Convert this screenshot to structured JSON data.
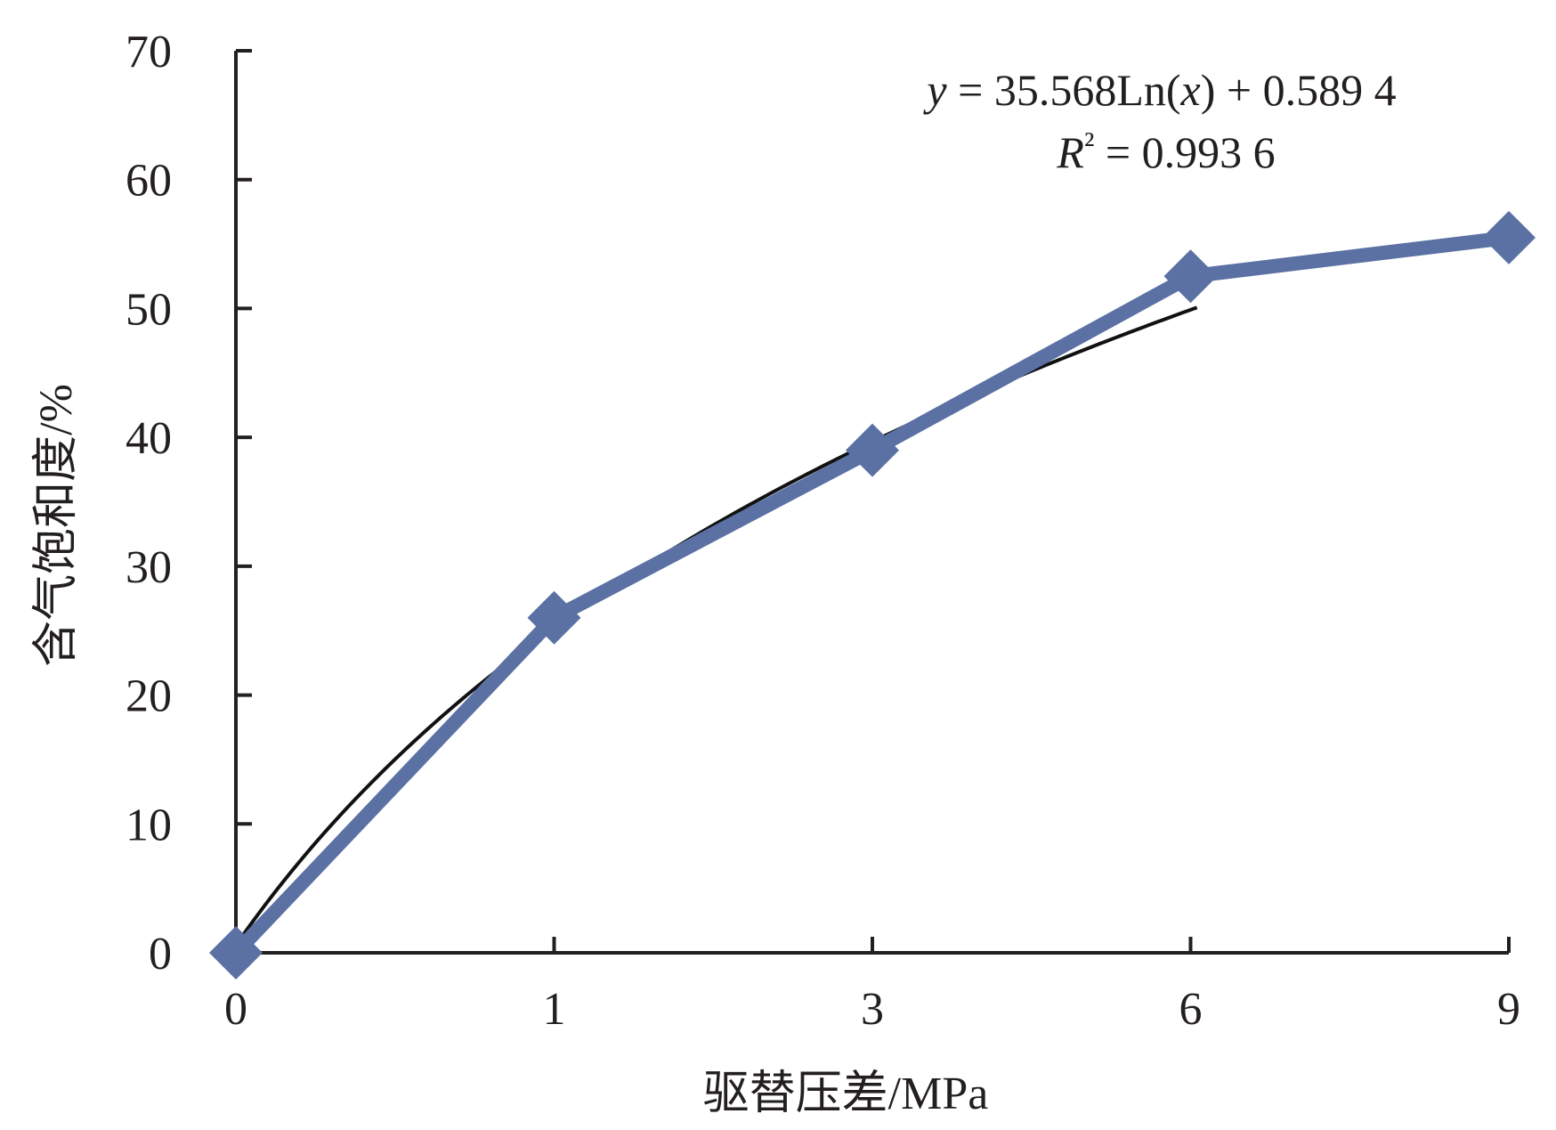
{
  "chart_data": {
    "type": "line",
    "categories": [
      "0",
      "1",
      "3",
      "6",
      "9"
    ],
    "series": [
      {
        "values": [
          0,
          26,
          39,
          52.5,
          55.5
        ],
        "color": "#5b71a3",
        "marker": "diamond"
      }
    ],
    "trendline": {
      "type": "logarithmic",
      "a": 35.568,
      "b": 0.5894,
      "color": "#111111",
      "equation_parts": {
        "y": "y",
        "eq_mid": " = 35.568Ln(",
        "x": "x",
        "eq_tail": ") + 0.589 4"
      },
      "r2_parts": {
        "r": "R",
        "sup": "²",
        "tail": " = 0.993 6"
      }
    },
    "xlabel": "驱替压差/MPa",
    "ylabel": "含气饱和度/%",
    "ylim": [
      0,
      70
    ],
    "y_ticks": [
      "0",
      "10",
      "20",
      "30",
      "40",
      "50",
      "60",
      "70"
    ],
    "grid": false
  }
}
